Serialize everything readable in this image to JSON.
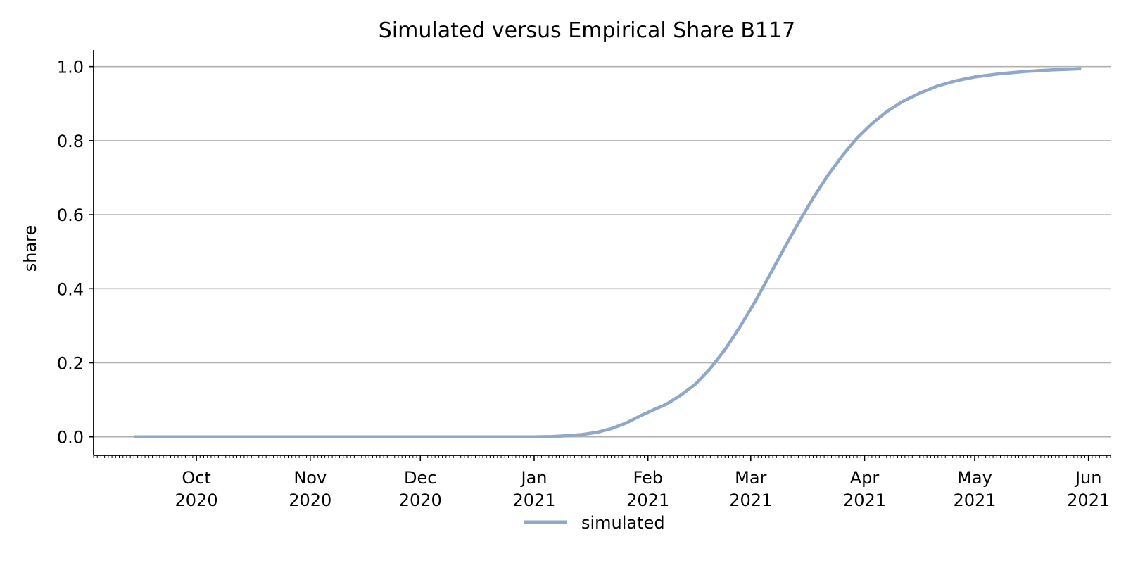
{
  "chart_data": {
    "type": "line",
    "title": "Simulated versus Empirical Share B117",
    "ylabel": "share",
    "xlabel": "",
    "x_range": [
      "2020-09-03",
      "2021-06-07"
    ],
    "ylim": [
      -0.05,
      1.045
    ],
    "y_ticks": [
      "0.0",
      "0.2",
      "0.4",
      "0.6",
      "0.8",
      "1.0"
    ],
    "x_ticks": [
      {
        "date": "2020-10-01",
        "line1": "Oct",
        "line2": "2020"
      },
      {
        "date": "2020-11-01",
        "line1": "Nov",
        "line2": "2020"
      },
      {
        "date": "2020-12-01",
        "line1": "Dec",
        "line2": "2020"
      },
      {
        "date": "2021-01-01",
        "line1": "Jan",
        "line2": "2021"
      },
      {
        "date": "2021-02-01",
        "line1": "Feb",
        "line2": "2021"
      },
      {
        "date": "2021-03-01",
        "line1": "Mar",
        "line2": "2021"
      },
      {
        "date": "2021-04-01",
        "line1": "Apr",
        "line2": "2021"
      },
      {
        "date": "2021-05-01",
        "line1": "May",
        "line2": "2021"
      },
      {
        "date": "2021-06-01",
        "line1": "Jun",
        "line2": "2021"
      }
    ],
    "grid": "horizontal",
    "legend_position": "bottom-center",
    "series": [
      {
        "name": "simulated",
        "color": "#8fa8c8",
        "points": [
          [
            "2020-09-14",
            0.0
          ],
          [
            "2020-11-01",
            0.0
          ],
          [
            "2020-12-15",
            0.0
          ],
          [
            "2021-01-01",
            0.0
          ],
          [
            "2021-01-06",
            0.001
          ],
          [
            "2021-01-10",
            0.003
          ],
          [
            "2021-01-14",
            0.006
          ],
          [
            "2021-01-18",
            0.012
          ],
          [
            "2021-01-22",
            0.022
          ],
          [
            "2021-01-26",
            0.037
          ],
          [
            "2021-01-30",
            0.057
          ],
          [
            "2021-02-03",
            0.075
          ],
          [
            "2021-02-06",
            0.088
          ],
          [
            "2021-02-10",
            0.113
          ],
          [
            "2021-02-14",
            0.143
          ],
          [
            "2021-02-18",
            0.185
          ],
          [
            "2021-02-22",
            0.236
          ],
          [
            "2021-02-26",
            0.296
          ],
          [
            "2021-03-02",
            0.362
          ],
          [
            "2021-03-06",
            0.434
          ],
          [
            "2021-03-10",
            0.507
          ],
          [
            "2021-03-14",
            0.578
          ],
          [
            "2021-03-18",
            0.645
          ],
          [
            "2021-03-22",
            0.706
          ],
          [
            "2021-03-26",
            0.76
          ],
          [
            "2021-03-30",
            0.808
          ],
          [
            "2021-04-03",
            0.846
          ],
          [
            "2021-04-07",
            0.878
          ],
          [
            "2021-04-11",
            0.904
          ],
          [
            "2021-04-16",
            0.928
          ],
          [
            "2021-04-21",
            0.948
          ],
          [
            "2021-04-26",
            0.962
          ],
          [
            "2021-05-01",
            0.972
          ],
          [
            "2021-05-08",
            0.981
          ],
          [
            "2021-05-15",
            0.987
          ],
          [
            "2021-05-22",
            0.991
          ],
          [
            "2021-05-30",
            0.994
          ]
        ]
      }
    ]
  }
}
